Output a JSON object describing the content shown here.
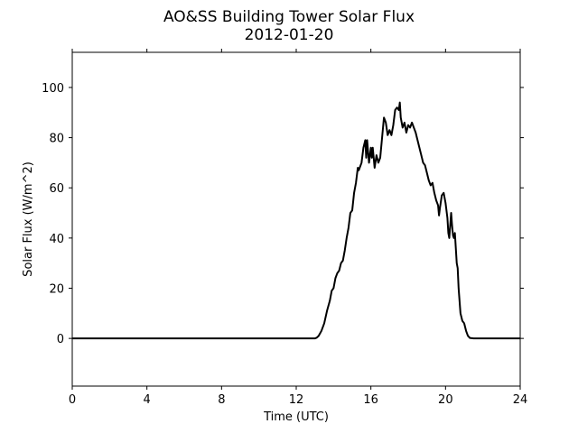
{
  "chart_data": {
    "type": "line",
    "title": "AO&SS Building Tower Solar Flux",
    "subtitle": "2012-01-20",
    "xlabel": "Time (UTC)",
    "ylabel": "Solar Flux (W/m^2)",
    "xlim": [
      0,
      24
    ],
    "ylim": [
      -19,
      114
    ],
    "xticks": [
      0,
      4,
      8,
      12,
      16,
      20,
      24
    ],
    "yticks": [
      0,
      20,
      40,
      60,
      80,
      100
    ],
    "grid": false,
    "legend": "none",
    "series": [
      {
        "color": "#000000",
        "points": [
          [
            0,
            0
          ],
          [
            12.0,
            0
          ],
          [
            13.0,
            0
          ],
          [
            13.1,
            0.3
          ],
          [
            13.2,
            1
          ],
          [
            13.35,
            3
          ],
          [
            13.5,
            6
          ],
          [
            13.65,
            11
          ],
          [
            13.8,
            15
          ],
          [
            13.9,
            19
          ],
          [
            14.0,
            20
          ],
          [
            14.1,
            24
          ],
          [
            14.2,
            26
          ],
          [
            14.3,
            27
          ],
          [
            14.4,
            30
          ],
          [
            14.5,
            31
          ],
          [
            14.6,
            35
          ],
          [
            14.7,
            40
          ],
          [
            14.8,
            44
          ],
          [
            14.9,
            50
          ],
          [
            15.0,
            51
          ],
          [
            15.1,
            58
          ],
          [
            15.2,
            62
          ],
          [
            15.3,
            68
          ],
          [
            15.35,
            67
          ],
          [
            15.4,
            68
          ],
          [
            15.5,
            70
          ],
          [
            15.6,
            76
          ],
          [
            15.7,
            79
          ],
          [
            15.75,
            72
          ],
          [
            15.8,
            79
          ],
          [
            15.9,
            70
          ],
          [
            16.0,
            76
          ],
          [
            16.05,
            72
          ],
          [
            16.1,
            76
          ],
          [
            16.2,
            68
          ],
          [
            16.3,
            73
          ],
          [
            16.4,
            70
          ],
          [
            16.5,
            72
          ],
          [
            16.6,
            80
          ],
          [
            16.7,
            88
          ],
          [
            16.8,
            86
          ],
          [
            16.9,
            81
          ],
          [
            17.0,
            83
          ],
          [
            17.1,
            81
          ],
          [
            17.2,
            85
          ],
          [
            17.3,
            91
          ],
          [
            17.4,
            92
          ],
          [
            17.5,
            91
          ],
          [
            17.55,
            94
          ],
          [
            17.6,
            88
          ],
          [
            17.7,
            84
          ],
          [
            17.8,
            86
          ],
          [
            17.9,
            82
          ],
          [
            18.0,
            85
          ],
          [
            18.1,
            84
          ],
          [
            18.2,
            86
          ],
          [
            18.3,
            84
          ],
          [
            18.4,
            82
          ],
          [
            18.5,
            79
          ],
          [
            18.6,
            76
          ],
          [
            18.7,
            73
          ],
          [
            18.8,
            70
          ],
          [
            18.9,
            69
          ],
          [
            19.0,
            66
          ],
          [
            19.1,
            63
          ],
          [
            19.2,
            61
          ],
          [
            19.3,
            62
          ],
          [
            19.4,
            58
          ],
          [
            19.5,
            55
          ],
          [
            19.6,
            53
          ],
          [
            19.65,
            49
          ],
          [
            19.7,
            52
          ],
          [
            19.8,
            57
          ],
          [
            19.9,
            58
          ],
          [
            20.0,
            54
          ],
          [
            20.1,
            48
          ],
          [
            20.15,
            42
          ],
          [
            20.2,
            40
          ],
          [
            20.3,
            50
          ],
          [
            20.35,
            45
          ],
          [
            20.4,
            41
          ],
          [
            20.45,
            40
          ],
          [
            20.5,
            42
          ],
          [
            20.55,
            36
          ],
          [
            20.6,
            30
          ],
          [
            20.65,
            28
          ],
          [
            20.7,
            20
          ],
          [
            20.8,
            10
          ],
          [
            20.9,
            7
          ],
          [
            21.0,
            6
          ],
          [
            21.1,
            3
          ],
          [
            21.2,
            1
          ],
          [
            21.3,
            0.2
          ],
          [
            21.5,
            0
          ],
          [
            24,
            0
          ]
        ]
      }
    ]
  }
}
